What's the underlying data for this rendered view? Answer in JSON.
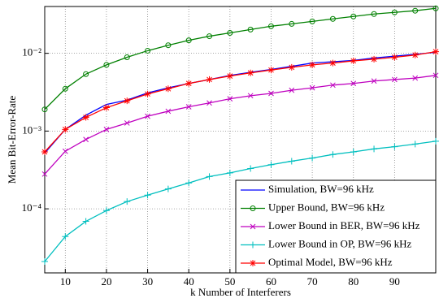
{
  "chart_data": {
    "type": "line",
    "xlabel": "k Number of Interferers",
    "ylabel": "Mean Bit-Error-Rate",
    "x": [
      5,
      10,
      15,
      20,
      25,
      30,
      35,
      40,
      45,
      50,
      55,
      60,
      65,
      70,
      75,
      80,
      85,
      90,
      95,
      100
    ],
    "xlim": [
      5,
      100
    ],
    "xticks": [
      10,
      20,
      30,
      40,
      50,
      60,
      70,
      80,
      90
    ],
    "ylim": [
      1.5e-05,
      0.04
    ],
    "log_y": true,
    "grid": true,
    "legend": "lower right",
    "yticks": [
      {
        "value": 0.0001,
        "label": "10⁻⁴"
      },
      {
        "value": 0.001,
        "label": "10⁻³"
      },
      {
        "value": 0.01,
        "label": "10⁻²"
      }
    ],
    "series": [
      {
        "name": "Simulation, BW=96 kHz",
        "color": "#0000ff",
        "marker": "none",
        "values": [
          0.00052,
          0.00105,
          0.0016,
          0.0022,
          0.0025,
          0.0031,
          0.0036,
          0.0041,
          0.0046,
          0.0052,
          0.0057,
          0.0062,
          0.0068,
          0.0075,
          0.0078,
          0.0081,
          0.0087,
          0.0092,
          0.0097,
          0.0103
        ]
      },
      {
        "name": "Upper Bound, BW=96 kHz",
        "color": "#008000",
        "marker": "circle",
        "values": [
          0.0019,
          0.0035,
          0.0054,
          0.0071,
          0.0089,
          0.0108,
          0.0127,
          0.0147,
          0.0166,
          0.0183,
          0.0202,
          0.0223,
          0.0239,
          0.0257,
          0.0277,
          0.0298,
          0.032,
          0.0336,
          0.0353,
          0.0379
        ]
      },
      {
        "name": "Lower Bound in BER, BW=96 kHz",
        "color": "#bf00bf",
        "marker": "x",
        "values": [
          0.00028,
          0.00055,
          0.00078,
          0.00105,
          0.00127,
          0.00155,
          0.0018,
          0.00205,
          0.0023,
          0.0026,
          0.00285,
          0.00305,
          0.00335,
          0.0036,
          0.0039,
          0.0041,
          0.0044,
          0.0046,
          0.0048,
          0.0052
        ]
      },
      {
        "name": "Lower Bound in OP, BW=96 kHz",
        "color": "#00bfbf",
        "marker": "plus",
        "values": [
          2.1e-05,
          4.4e-05,
          6.9e-05,
          9.5e-05,
          0.000124,
          0.00015,
          0.00018,
          0.000215,
          0.00026,
          0.00029,
          0.00033,
          0.00037,
          0.00041,
          0.00045,
          0.0005,
          0.00054,
          0.00059,
          0.00063,
          0.00068,
          0.00074
        ]
      },
      {
        "name": "Optimal Model, BW=96 kHz",
        "color": "#ff0000",
        "marker": "star",
        "values": [
          0.00054,
          0.00105,
          0.0015,
          0.002,
          0.00245,
          0.003,
          0.0035,
          0.0041,
          0.0046,
          0.0051,
          0.0056,
          0.0061,
          0.0066,
          0.0071,
          0.0075,
          0.008,
          0.0084,
          0.0089,
          0.0095,
          0.0105
        ]
      }
    ]
  }
}
